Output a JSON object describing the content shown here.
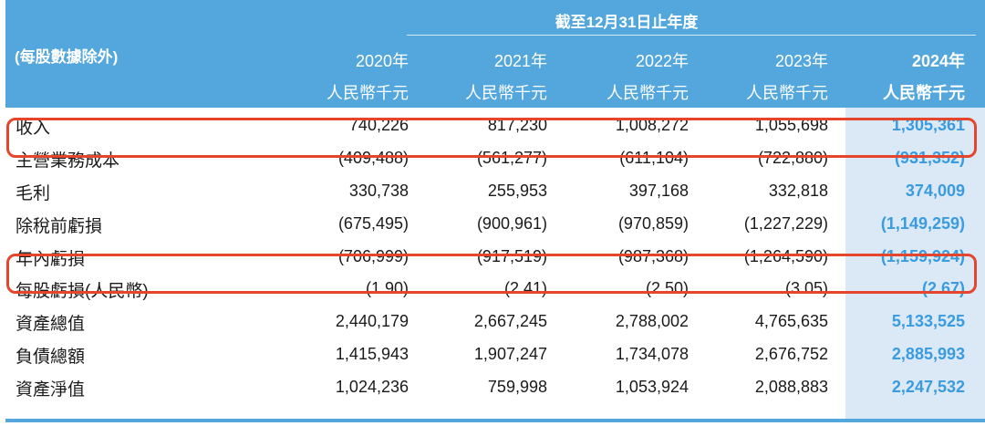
{
  "header": {
    "period": "截至12月31日止年度",
    "stub": "(每股數據除外)",
    "columns": [
      {
        "year": "2020年",
        "unit": "人民幣千元"
      },
      {
        "year": "2021年",
        "unit": "人民幣千元"
      },
      {
        "year": "2022年",
        "unit": "人民幣千元"
      },
      {
        "year": "2023年",
        "unit": "人民幣千元"
      },
      {
        "year": "2024年",
        "unit": "人民幣千元"
      }
    ]
  },
  "rows": [
    {
      "label": "收入",
      "values": [
        "740,226",
        "817,230",
        "1,008,272",
        "1,055,698",
        "1,305,361"
      ]
    },
    {
      "label": "主營業務成本",
      "values": [
        "(409,488)",
        "(561,277)",
        "(611,104)",
        "(722,880)",
        "(931,352)"
      ]
    },
    {
      "label": "毛利",
      "values": [
        "330,738",
        "255,953",
        "397,168",
        "332,818",
        "374,009"
      ]
    },
    {
      "label": "除稅前虧損",
      "values": [
        "(675,495)",
        "(900,961)",
        "(970,859)",
        "(1,227,229)",
        "(1,149,259)"
      ]
    },
    {
      "label": "年內虧損",
      "values": [
        "(706,999)",
        "(917,519)",
        "(987,368)",
        "(1,264,590)",
        "(1,159,924)"
      ]
    },
    {
      "label": "每股虧損(人民幣)",
      "values": [
        "(1.90)",
        "(2.41)",
        "(2.50)",
        "(3.05)",
        "(2.67)"
      ]
    },
    {
      "label": "資產總值",
      "values": [
        "2,440,179",
        "2,667,245",
        "2,788,002",
        "4,765,635",
        "5,133,525"
      ]
    },
    {
      "label": "負債總額",
      "values": [
        "1,415,943",
        "1,907,247",
        "1,734,078",
        "2,676,752",
        "2,885,993"
      ]
    },
    {
      "label": "資產淨值",
      "values": [
        "1,024,236",
        "759,998",
        "1,053,924",
        "2,088,883",
        "2,247,532"
      ]
    }
  ],
  "colors": {
    "header_bg": "#53a7dc",
    "highlight_col_bg": "#dbe9f6",
    "highlight_text": "#3a9be0",
    "box_border": "#e5452c"
  }
}
